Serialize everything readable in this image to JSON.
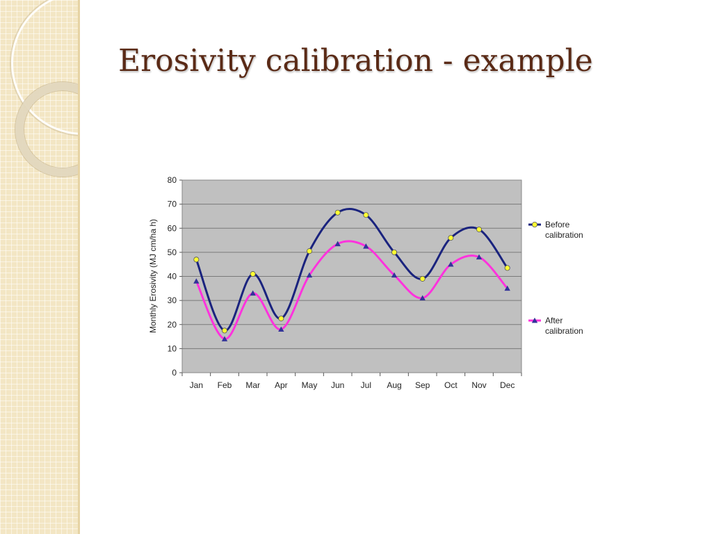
{
  "slide": {
    "title": "Erosivity calibration - example"
  },
  "colors": {
    "side_panel": "#f3e6c4",
    "plot_background": "#c0c0c0",
    "before_line": "#1a237e",
    "before_marker": "#ffff33",
    "after_line": "#ff33dd",
    "after_marker": "#333399",
    "title": "#5a2a16"
  },
  "chart_data": {
    "type": "line",
    "title": "",
    "xlabel": "",
    "ylabel": "Monthly Erosivity  (MJ cm/ha h)",
    "ylim": [
      0,
      80
    ],
    "yticks": [
      0,
      10,
      20,
      30,
      40,
      50,
      60,
      70,
      80
    ],
    "grid": true,
    "smooth": true,
    "legend_position": "right",
    "categories": [
      "Jan",
      "Feb",
      "Mar",
      "Apr",
      "May",
      "Jun",
      "Jul",
      "Aug",
      "Sep",
      "Oct",
      "Nov",
      "Dec"
    ],
    "series": [
      {
        "name": "Before calibration",
        "name_lines": [
          "Before",
          "calibration"
        ],
        "marker": "circle",
        "values": [
          47,
          17.5,
          41,
          22.5,
          50.5,
          66.5,
          65.5,
          50,
          39,
          56,
          59.5,
          43.5
        ]
      },
      {
        "name": "After calibration",
        "name_lines": [
          "After",
          "calibration"
        ],
        "marker": "triangle",
        "values": [
          38,
          14,
          33,
          18,
          40.5,
          53.5,
          52.5,
          40.5,
          31,
          45,
          48,
          35
        ]
      }
    ]
  }
}
